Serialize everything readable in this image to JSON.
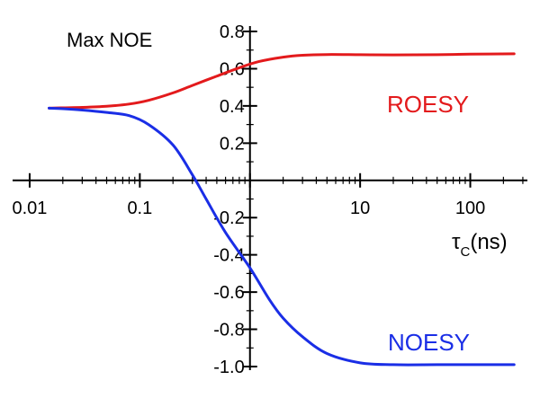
{
  "chart_data": {
    "type": "line",
    "ylabel": "Max NOE",
    "xlabel_main": "τ",
    "xlabel_sub": "C",
    "xlabel_unit": "(ns)",
    "x_scale": "log",
    "xlim": [
      0.007,
      330
    ],
    "ylim": [
      -1.0,
      0.8
    ],
    "x_ticks": [
      {
        "value": 0.01,
        "label": "0.01"
      },
      {
        "value": 0.1,
        "label": "0.1"
      },
      {
        "value": 1,
        "label": ""
      },
      {
        "value": 10,
        "label": "10"
      },
      {
        "value": 100,
        "label": "100"
      }
    ],
    "y_ticks": [
      {
        "value": 0.8,
        "label": "0.8"
      },
      {
        "value": 0.6,
        "label": "0.6"
      },
      {
        "value": 0.4,
        "label": "0.4"
      },
      {
        "value": 0.2,
        "label": "0.2"
      },
      {
        "value": -0.2,
        "label": "-0.2"
      },
      {
        "value": -0.4,
        "label": "-0.4"
      },
      {
        "value": -0.6,
        "label": "-0.6"
      },
      {
        "value": -0.8,
        "label": "-0.8"
      },
      {
        "value": -1.0,
        "label": "-1.0"
      }
    ],
    "grid": false,
    "series": [
      {
        "name": "ROESY",
        "color": "#e31a1c",
        "x": [
          0.015,
          0.02,
          0.03,
          0.05,
          0.08,
          0.12,
          0.2,
          0.3,
          0.5,
          0.8,
          1.2,
          2,
          3,
          5,
          10,
          20,
          50,
          100,
          250
        ],
        "y": [
          0.388,
          0.39,
          0.392,
          0.398,
          0.41,
          0.43,
          0.47,
          0.51,
          0.56,
          0.605,
          0.638,
          0.662,
          0.672,
          0.676,
          0.675,
          0.674,
          0.675,
          0.678,
          0.68
        ]
      },
      {
        "name": "NOESY",
        "color": "#1a2ee6",
        "x": [
          0.015,
          0.02,
          0.03,
          0.05,
          0.08,
          0.12,
          0.2,
          0.3,
          0.4,
          0.6,
          1.0,
          1.5,
          2,
          3,
          5,
          10,
          20,
          50,
          100,
          250
        ],
        "y": [
          0.388,
          0.385,
          0.378,
          0.365,
          0.348,
          0.3,
          0.19,
          0.03,
          -0.1,
          -0.28,
          -0.47,
          -0.64,
          -0.74,
          -0.84,
          -0.93,
          -0.98,
          -0.99,
          -0.99,
          -0.99,
          -0.99
        ]
      }
    ]
  }
}
